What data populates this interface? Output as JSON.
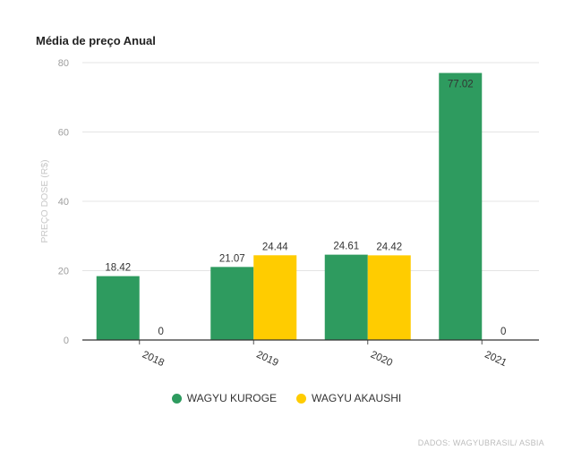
{
  "chart_data": {
    "type": "bar",
    "title": "Média de preço Anual",
    "ylabel": "PREÇO DOSE (R$)",
    "xlabel": "",
    "categories": [
      "2018",
      "2019",
      "2020",
      "2021"
    ],
    "series": [
      {
        "name": "WAGYU KUROGE",
        "color": "#2e9b5f",
        "values": [
          18.42,
          21.07,
          24.61,
          77.02
        ],
        "labels": [
          "18.42",
          "21.07",
          "24.61",
          "77.02"
        ]
      },
      {
        "name": "WAGYU AKAUSHI",
        "color": "#ffcc00",
        "values": [
          0,
          24.44,
          24.42,
          0
        ],
        "labels": [
          "0",
          "24.44",
          "24.42",
          "0"
        ]
      }
    ],
    "ylim": [
      0,
      80
    ],
    "yticks": [
      0,
      20,
      40,
      60,
      80
    ],
    "grid": true,
    "legend_position": "bottom"
  },
  "footer": {
    "source": "DADOS: WAGYUBRASIL/ ASBIA"
  }
}
